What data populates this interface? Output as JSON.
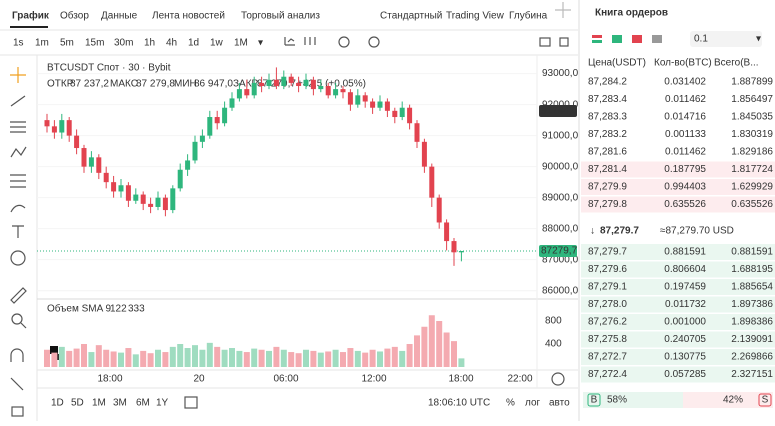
{
  "tabs": [
    "График",
    "Обзор",
    "Данные",
    "Лента новостей",
    "Торговый анализ"
  ],
  "views": [
    "Стандартный",
    "Trading View",
    "Глубина"
  ],
  "intervals": [
    "1s",
    "1m",
    "5m",
    "15m",
    "30m",
    "1h",
    "4h",
    "1d",
    "1w",
    "1M"
  ],
  "chart": {
    "type": "candlestick",
    "symbol": "BTCUSDT Спот · 30 · Bybit",
    "ohlc_labels": [
      "ОТКР",
      "МАКС",
      "МИН",
      "ЗАКР"
    ],
    "ohlc_values": [
      "87 237,2",
      "87 279,8",
      "86 947,0",
      "87 279,7"
    ],
    "change": "+42,5 (+0,05%)",
    "up_color": "#2eb67d",
    "down_color": "#e2434f",
    "open": [
      91500,
      91300,
      91100,
      91500,
      91000,
      90600,
      90000,
      90300,
      89800,
      89500,
      89200,
      89400,
      88900,
      89100,
      88800,
      88700,
      89000,
      88600,
      89300,
      89900,
      90200,
      90800,
      91000,
      91600,
      91400,
      91900,
      92200,
      92500,
      92300,
      92700,
      92600,
      92800,
      92600,
      92900,
      92700,
      92600,
      92800,
      92500,
      92600,
      92300,
      92500,
      92400,
      92000,
      92300,
      92100,
      91900,
      92100,
      91800,
      91600,
      91900,
      91400,
      90800,
      90000,
      89000,
      88200,
      87600,
      87237.2
    ],
    "high": [
      91700,
      91500,
      91700,
      91600,
      91200,
      90700,
      90500,
      90400,
      90000,
      89700,
      89600,
      89500,
      89300,
      89200,
      89000,
      89200,
      89100,
      89400,
      90100,
      90400,
      91000,
      91200,
      91800,
      91800,
      92100,
      92400,
      92700,
      92800,
      92900,
      92900,
      93000,
      93200,
      93100,
      93000,
      92900,
      93000,
      92900,
      92800,
      92700,
      92700,
      92600,
      92500,
      92500,
      92400,
      92200,
      92300,
      92200,
      91900,
      92100,
      92000,
      91500,
      90900,
      90100,
      89100,
      88300,
      87700,
      87279.8
    ],
    "low": [
      91100,
      90900,
      90900,
      90800,
      90400,
      89800,
      89800,
      89600,
      89300,
      89000,
      89000,
      88700,
      88800,
      88600,
      88500,
      88600,
      88400,
      88500,
      89200,
      89700,
      90100,
      90600,
      90900,
      91200,
      91300,
      91800,
      92100,
      92200,
      92200,
      92400,
      92500,
      92500,
      92500,
      92600,
      92400,
      92500,
      92300,
      92400,
      92200,
      92200,
      92200,
      91800,
      91900,
      91900,
      91700,
      91800,
      91600,
      91400,
      91500,
      91200,
      90600,
      89800,
      88700,
      88000,
      87300,
      86800,
      86947
    ],
    "close": [
      91300,
      91100,
      91500,
      91000,
      90600,
      90000,
      90300,
      89800,
      89500,
      89200,
      89400,
      88900,
      89100,
      88800,
      88700,
      89000,
      88600,
      89300,
      89900,
      90200,
      90800,
      91000,
      91600,
      91400,
      91900,
      92200,
      92500,
      92300,
      92700,
      92600,
      92800,
      92600,
      92900,
      92700,
      92600,
      92800,
      92500,
      92600,
      92300,
      92500,
      92400,
      92000,
      92300,
      92100,
      91900,
      92100,
      91800,
      91600,
      91900,
      91400,
      90800,
      90000,
      89000,
      88200,
      87600,
      87237.2,
      87279.7
    ],
    "ylim": [
      85700,
      93600
    ],
    "yticks": [
      {
        "value": 93000,
        "label": "93000,0"
      },
      {
        "value": 92000,
        "label": "92000,0"
      },
      {
        "value": 91000,
        "label": "91000,0"
      },
      {
        "value": 90000,
        "label": "90000,0"
      },
      {
        "value": 89000,
        "label": "89000,0"
      },
      {
        "value": 88000,
        "label": "88000,0"
      },
      {
        "value": 87000,
        "label": "87000,0"
      },
      {
        "value": 86000,
        "label": "86000,0"
      }
    ],
    "price_tags": [
      {
        "value": 91794,
        "label": "91794,0"
      },
      {
        "value": 87279.7,
        "label": "87279,7"
      }
    ],
    "volume": {
      "title": "Объем SMA 9",
      "sma_values": [
        "122",
        "333"
      ],
      "values": [
        300,
        250,
        350,
        280,
        320,
        400,
        260,
        380,
        300,
        270,
        250,
        330,
        220,
        280,
        240,
        300,
        260,
        350,
        400,
        330,
        380,
        300,
        420,
        350,
        300,
        330,
        280,
        260,
        320,
        300,
        280,
        350,
        300,
        260,
        240,
        300,
        280,
        250,
        270,
        300,
        260,
        330,
        280,
        250,
        300,
        270,
        320,
        350,
        280,
        400,
        550,
        700,
        900,
        800,
        600,
        450,
        150
      ],
      "ylim": [
        0,
        1200
      ],
      "yticks": [
        800,
        400
      ]
    },
    "time_labels": [
      "18:00",
      "20",
      "06:00",
      "12:00",
      "18:00",
      "22:00"
    ]
  },
  "range_buttons": [
    "1D",
    "5D",
    "1M",
    "3M",
    "6M",
    "1Y"
  ],
  "clock": "18:06:10 UTC",
  "scale_buttons": [
    "%",
    "лог",
    "авто"
  ],
  "order_book": {
    "title": "Книга ордеров",
    "step": "0.1",
    "columns": [
      "Цена(USDT)",
      "Кол-во(BTC)",
      "Всего(В..."
    ],
    "asks": [
      [
        "87,284.2",
        "0.031402",
        "1.887899"
      ],
      [
        "87,283.4",
        "0.011462",
        "1.856497"
      ],
      [
        "87,283.3",
        "0.014716",
        "1.845035"
      ],
      [
        "87,283.2",
        "0.001133",
        "1.830319"
      ],
      [
        "87,281.6",
        "0.011462",
        "1.829186"
      ],
      [
        "87,281.4",
        "0.187795",
        "1.817724"
      ],
      [
        "87,279.9",
        "0.994403",
        "1.629929"
      ],
      [
        "87,279.8",
        "0.635526",
        "0.635526"
      ]
    ],
    "last_price": "87,279.7",
    "last_price_usd": "≈87,279.70 USD",
    "bids": [
      [
        "87,279.7",
        "0.881591",
        "0.881591"
      ],
      [
        "87,279.6",
        "0.806604",
        "1.688195"
      ],
      [
        "87,279.1",
        "0.197459",
        "1.885654"
      ],
      [
        "87,278.0",
        "0.011732",
        "1.897386"
      ],
      [
        "87,276.2",
        "0.001000",
        "1.898386"
      ],
      [
        "87,275.8",
        "0.240705",
        "2.139091"
      ],
      [
        "87,272.7",
        "0.130775",
        "2.269866"
      ],
      [
        "87,272.4",
        "0.057285",
        "2.327151"
      ]
    ],
    "buy_label": "B",
    "buy_share": "58%",
    "sell_share": "42%",
    "sell_label": "S"
  }
}
